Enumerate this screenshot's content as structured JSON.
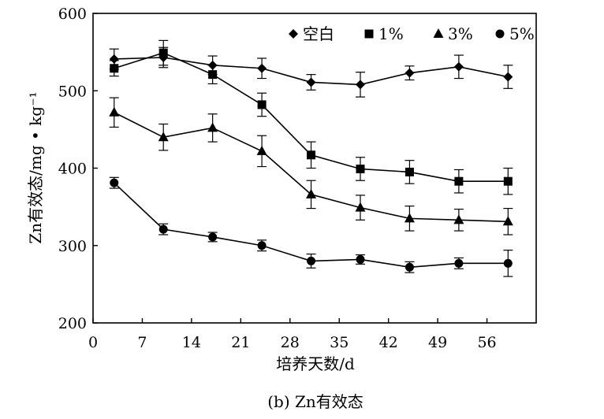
{
  "chart_data": {
    "type": "line",
    "title": "",
    "caption": "(b) Zn有效态",
    "xlabel": "培养天数/d",
    "ylabel": "Zn有效态/mg • kg⁻¹",
    "xlim": [
      0,
      63
    ],
    "ylim": [
      200,
      600
    ],
    "x_ticks": [
      "0",
      "7",
      "14",
      "21",
      "28",
      "35",
      "42",
      "49",
      "56"
    ],
    "y_ticks": [
      "200",
      "300",
      "400",
      "500",
      "600"
    ],
    "x": [
      3,
      10,
      17,
      24,
      31,
      38,
      45,
      52,
      59
    ],
    "series": [
      {
        "name": "空白",
        "marker": "diamond",
        "values": [
          541,
          543,
          533,
          529,
          511,
          508,
          523,
          531,
          518
        ],
        "errors": [
          13,
          13,
          12,
          13,
          10,
          16,
          9,
          15,
          15
        ]
      },
      {
        "name": "1%",
        "marker": "square",
        "values": [
          529,
          549,
          521,
          482,
          417,
          399,
          395,
          383,
          383
        ],
        "errors": [
          10,
          16,
          12,
          15,
          17,
          15,
          15,
          15,
          17
        ]
      },
      {
        "name": "3%",
        "marker": "triangle",
        "values": [
          472,
          440,
          452,
          422,
          366,
          349,
          335,
          333,
          331
        ],
        "errors": [
          19,
          17,
          18,
          20,
          18,
          16,
          16,
          14,
          17
        ]
      },
      {
        "name": "5%",
        "marker": "circle",
        "values": [
          381,
          321,
          311,
          300,
          280,
          282,
          272,
          277,
          277
        ],
        "errors": [
          7,
          7,
          6,
          7,
          9,
          6,
          7,
          7,
          17
        ]
      }
    ],
    "grid": false,
    "legend_position": "top-right"
  }
}
